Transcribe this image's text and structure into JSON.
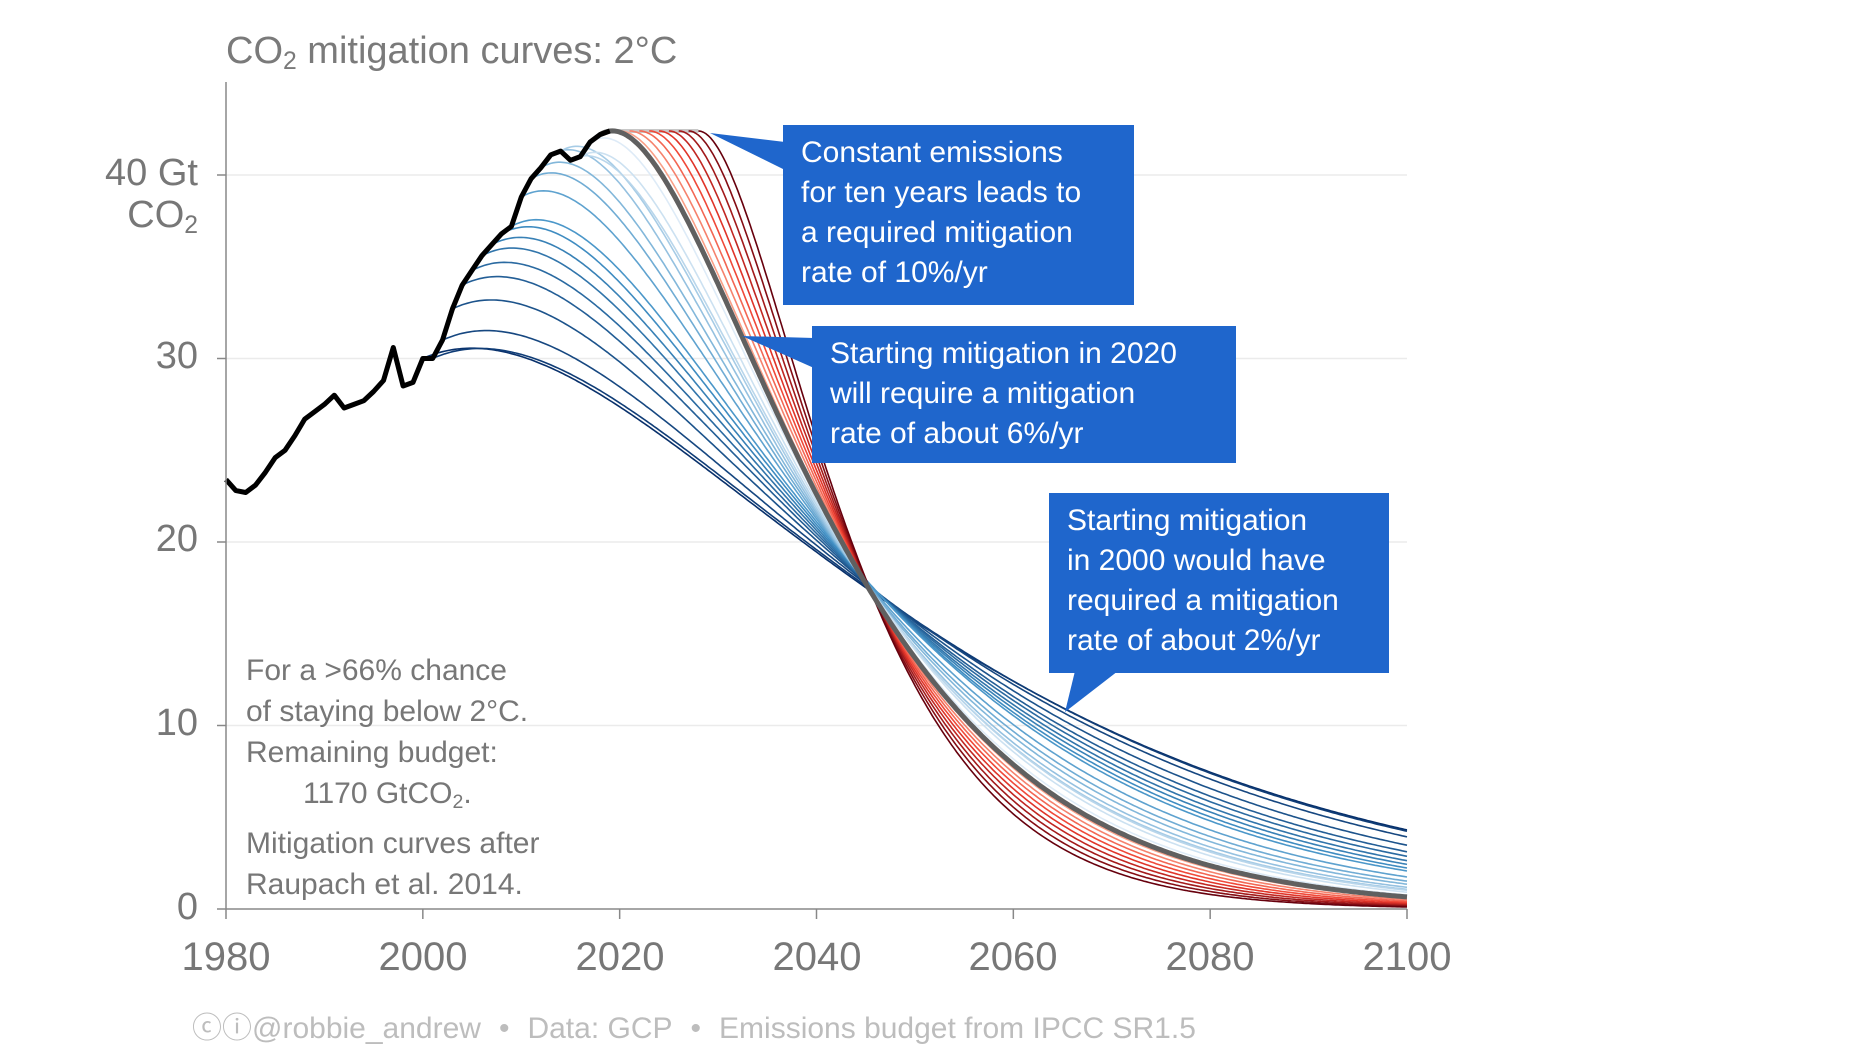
{
  "chart_data": {
    "type": "line",
    "title": "CO",
    "title_sub": "2",
    "title_rest": " mitigation curves: 2°C",
    "ylabel_top": "40 Gt",
    "ylabel_unit": "CO",
    "ylabel_unit_sub": "2",
    "xlim": [
      1980,
      2100
    ],
    "ylim": [
      0,
      45
    ],
    "x_ticks": [
      "1980",
      "2000",
      "2020",
      "2040",
      "2060",
      "2080",
      "2100"
    ],
    "y_ticks": [
      "0",
      "10",
      "20",
      "30"
    ],
    "grid": true,
    "historical": {
      "years_start": 1980,
      "values": [
        23.4,
        22.8,
        22.7,
        23.1,
        23.8,
        24.6,
        25.0,
        25.8,
        26.7,
        27.1,
        27.5,
        28.0,
        27.3,
        27.5,
        27.7,
        28.2,
        28.8,
        30.6,
        28.5,
        28.7,
        30.0,
        30.0,
        31.0,
        32.7,
        34.0,
        34.8,
        35.6,
        36.2,
        36.8,
        37.2,
        38.8,
        39.8,
        40.4,
        41.1,
        41.3,
        40.8,
        41.0,
        41.8,
        42.2,
        42.4
      ],
      "color": "#000000"
    },
    "budget_gt": 1170,
    "budget_from_year": 2018,
    "mitigation_start_years_blue": [
      2000,
      2001,
      2002,
      2003,
      2004,
      2005,
      2006,
      2007,
      2008,
      2009,
      2010,
      2011,
      2012,
      2013,
      2014,
      2015,
      2016,
      2017
    ],
    "mitigation_start_year_reference": 2018,
    "mitigation_start_years_red": [
      2019,
      2020,
      2021,
      2022,
      2023,
      2024,
      2025,
      2026,
      2027,
      2028
    ],
    "colors": {
      "blue_dark": "#08306b",
      "blue_mid": "#4292c6",
      "blue_light": "#deebf7",
      "reference": "#606060",
      "red_light": "#fcbba1",
      "red_mid": "#ef3b2c",
      "red_dark": "#67000d",
      "constant": "#c8c8c8",
      "annotation": "#1f66cc"
    }
  },
  "annotations": [
    {
      "lines": [
        "Constant emissions",
        "for ten years leads to",
        "a required mitigation",
        "rate of 10%/yr"
      ]
    },
    {
      "lines": [
        "Starting mitigation in 2020",
        "will require a mitigation",
        "rate of about 6%/yr"
      ]
    },
    {
      "lines": [
        "Starting mitigation",
        "in 2000 would have",
        "required a mitigation",
        "rate of about 2%/yr"
      ]
    }
  ],
  "note": {
    "line1": "For a >66% chance",
    "line2": "of staying below 2°C.",
    "line3": "Remaining budget:",
    "line4": "1170 GtCO",
    "line4_sub": "2",
    "line4_end": ".",
    "line5": "Mitigation curves after",
    "line6": "Raupach et al. 2014."
  },
  "footer": {
    "license_icons": "cc-by-icon",
    "author": "@robbie_andrew",
    "data": "Data: GCP",
    "budget": "Emissions budget from IPCC SR1.5"
  }
}
